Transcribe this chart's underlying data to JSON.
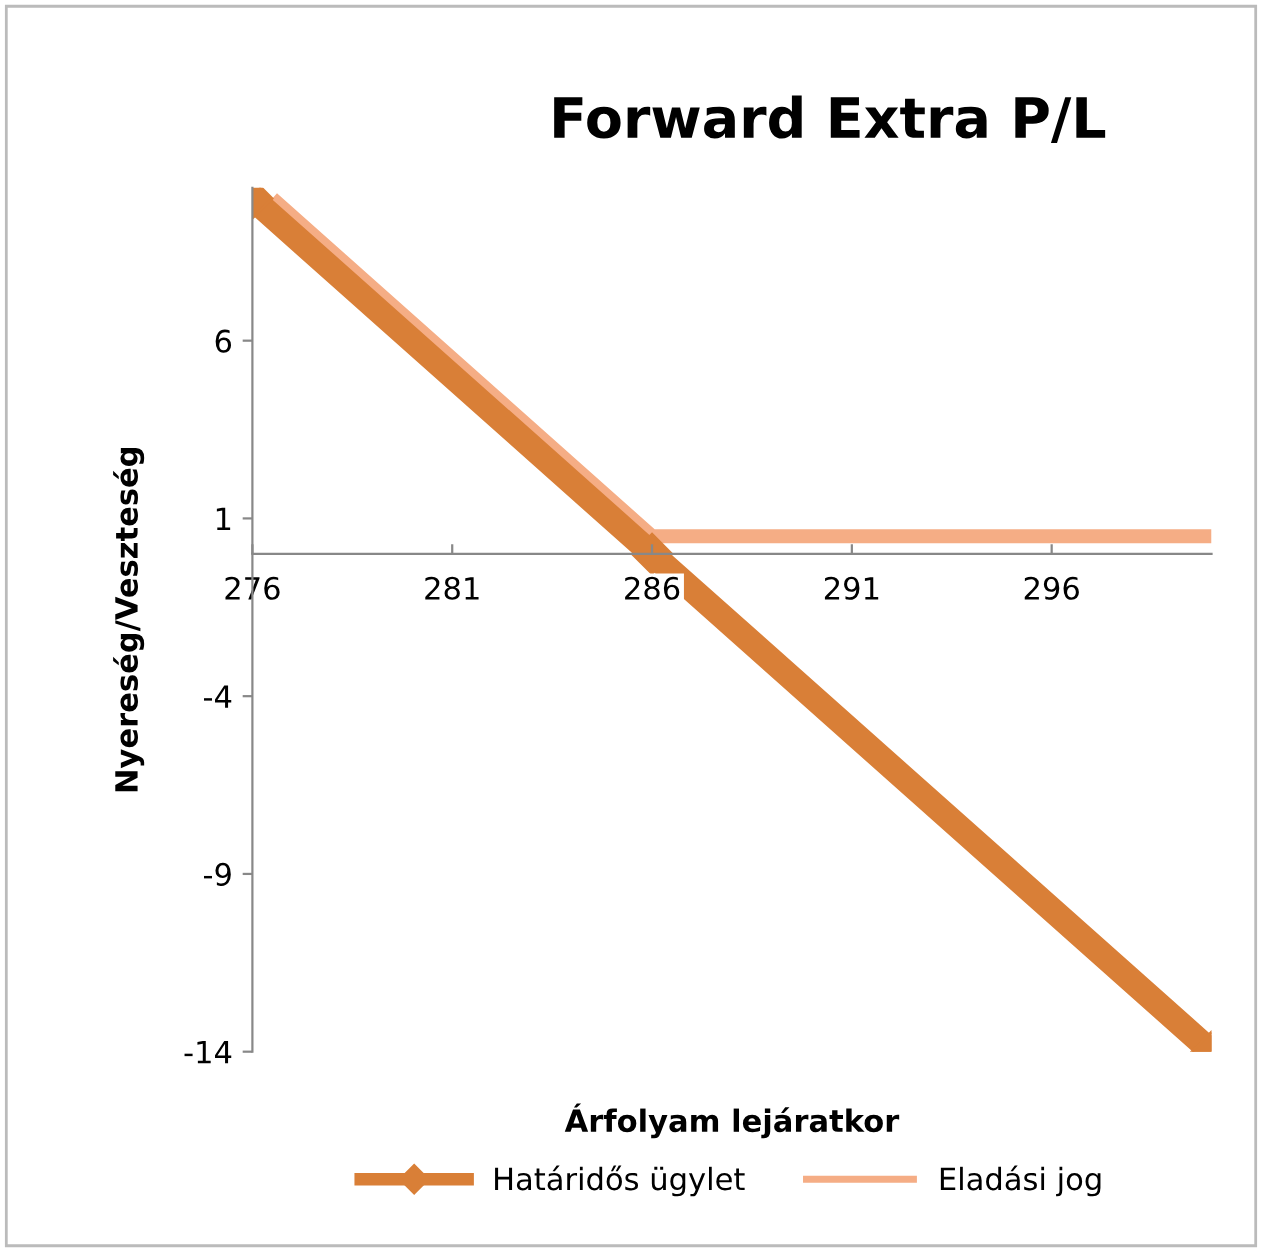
{
  "chart_data": {
    "type": "line",
    "title": "Forward Extra P/L",
    "xlabel": "Árfolyam lejáratkor",
    "ylabel": "Nyereség/Veszteség",
    "series": [
      {
        "name": "Határidős ügylet",
        "color": "#d97f37",
        "x": [
          276,
          286,
          300
        ],
        "values": [
          10,
          0,
          -14
        ],
        "marker": "diamond"
      },
      {
        "name": "Eladási jog",
        "color": "#f5ad85",
        "x": [
          276.5,
          286,
          300
        ],
        "values": [
          10,
          0.5,
          0.5
        ],
        "marker": "none"
      }
    ],
    "xlim": [
      276,
      300
    ],
    "xticks": [
      276,
      281,
      286,
      291,
      296
    ],
    "ylim": [
      -14,
      10.3
    ],
    "yticks": [
      -14,
      -9,
      -4,
      1,
      6
    ],
    "grid": false,
    "legend": "bottom",
    "line_style": "solid"
  }
}
